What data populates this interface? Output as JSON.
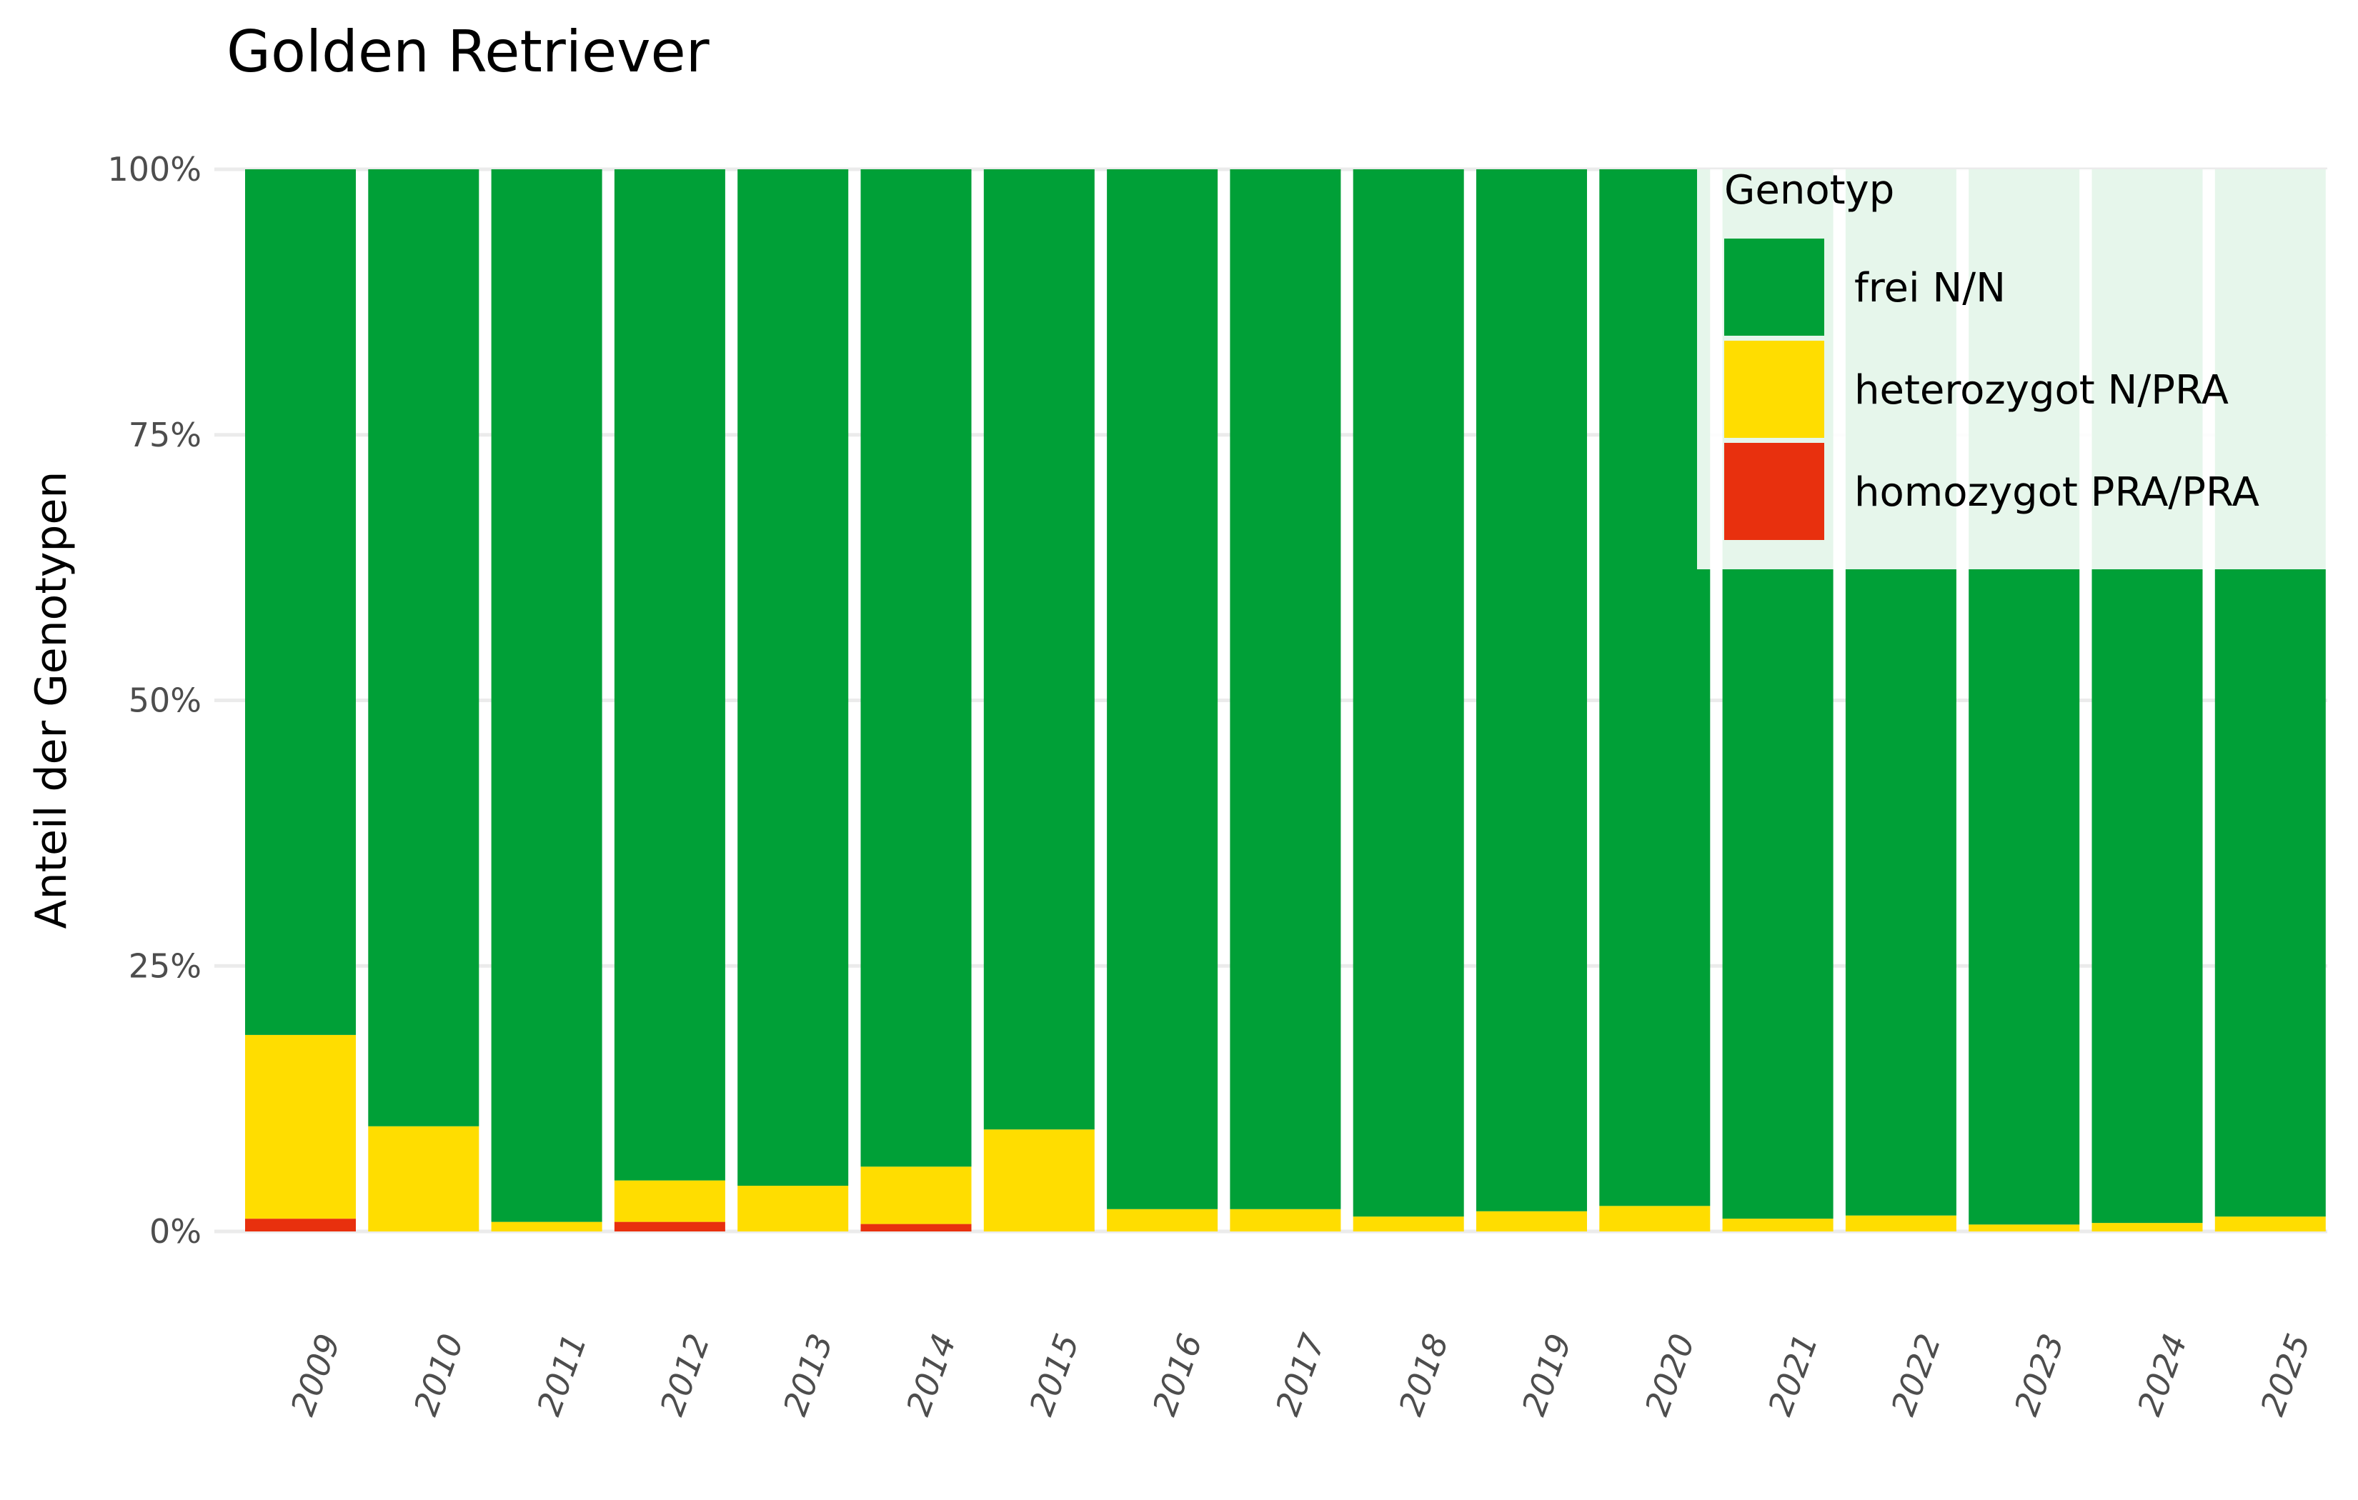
{
  "chart_data": {
    "type": "bar",
    "stacked": true,
    "percent": true,
    "title": "Golden Retriever",
    "xlabel": "",
    "ylabel": "Anteil der Genotypen",
    "ylim": [
      0,
      100
    ],
    "yticks": [
      "0%",
      "25%",
      "50%",
      "75%",
      "100%"
    ],
    "grid": true,
    "legend": {
      "title": "Genotyp",
      "placement": "top-right"
    },
    "categories": [
      "2009",
      "2010",
      "2011",
      "2012",
      "2013",
      "2014",
      "2015",
      "2016",
      "2017",
      "2018",
      "2019",
      "2020",
      "2021",
      "2022",
      "2023",
      "2024",
      "2025"
    ],
    "series": [
      {
        "name": "homozygot PRA/PRA",
        "color": "#e8300e",
        "values": [
          1.2,
          0,
          0,
          0.9,
          0,
          0.7,
          0,
          0,
          0,
          0,
          0,
          0,
          0,
          0,
          0,
          0,
          0
        ]
      },
      {
        "name": "heterozygot N/PRA",
        "color": "#ffdd00",
        "values": [
          17.3,
          9.9,
          0.9,
          3.9,
          4.3,
          5.4,
          9.6,
          2.1,
          2.1,
          1.4,
          1.9,
          2.4,
          1.2,
          1.5,
          0.65,
          0.8,
          1.4
        ]
      },
      {
        "name": "frei N/N",
        "color": "#00a037",
        "values": [
          81.5,
          90.1,
          99.1,
          95.2,
          95.7,
          93.9,
          90.4,
          97.9,
          97.9,
          98.6,
          98.1,
          97.6,
          98.8,
          98.5,
          99.35,
          99.2,
          98.6
        ]
      }
    ],
    "legend_order": [
      2,
      1,
      0
    ]
  }
}
